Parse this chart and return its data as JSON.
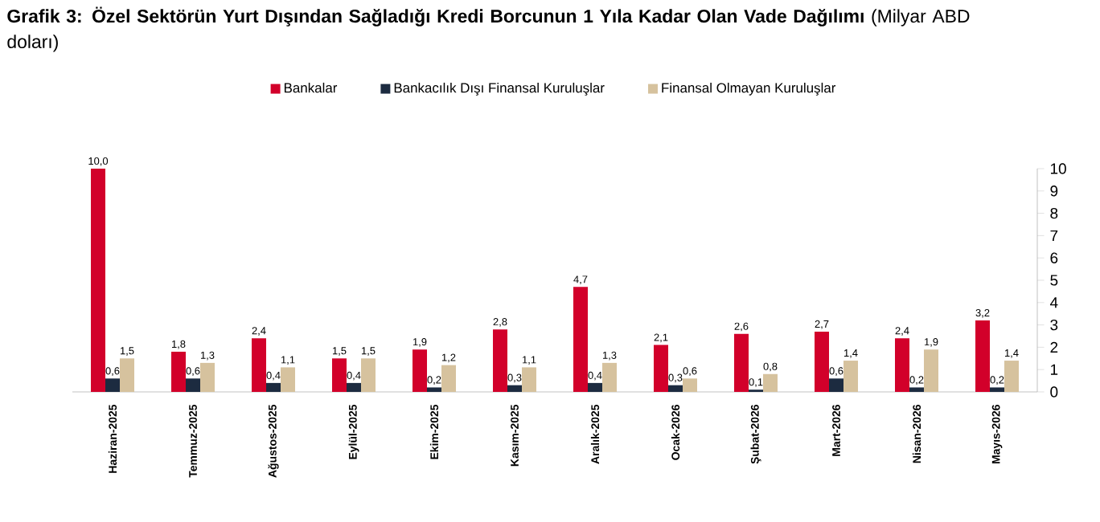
{
  "chart_data": {
    "type": "bar",
    "title": "**Grafik 3: Özel Sektörün Yurt Dışından Sağladığı Kredi Borcunun 1 Yıla Kadar Olan Vade Dağılımı** (Milyar ABD doları)",
    "categories": [
      "Haziran-2025",
      "Temmuz-2025",
      "Ağustos-2025",
      "Eylül-2025",
      "Ekim-2025",
      "Kasım-2025",
      "Aralık-2025",
      "Ocak-2026",
      "Şubat-2026",
      "Mart-2026",
      "Nisan-2026",
      "Mayıs-2026"
    ],
    "series": [
      {
        "name": "Bankalar",
        "color": "#d2002a",
        "values": [
          10.0,
          1.8,
          2.4,
          1.5,
          1.9,
          2.8,
          4.7,
          2.1,
          2.6,
          2.7,
          2.4,
          3.2
        ],
        "value_labels": [
          "10,0",
          "1,8",
          "2,4",
          "1,5",
          "1,9",
          "2,8",
          "4,7",
          "2,1",
          "2,6",
          "2,7",
          "2,4",
          "3,2"
        ]
      },
      {
        "name": "Bankacılık Dışı Finansal Kuruluşlar",
        "color": "#1c2b40",
        "values": [
          0.6,
          0.6,
          0.4,
          0.4,
          0.2,
          0.3,
          0.4,
          0.3,
          0.1,
          0.6,
          0.2,
          0.2
        ],
        "value_labels": [
          "0,6",
          "0,6",
          "0,4",
          "0,4",
          "0,2",
          "0,3",
          "0,4",
          "0,3",
          "0,1",
          "0,6",
          "0,2",
          "0,2"
        ]
      },
      {
        "name": "Finansal Olmayan Kuruluşlar",
        "color": "#d6c29e",
        "values": [
          1.5,
          1.3,
          1.1,
          1.5,
          1.2,
          1.1,
          1.3,
          0.6,
          0.8,
          1.4,
          1.9,
          1.4
        ],
        "value_labels": [
          "1,5",
          "1,3",
          "1,1",
          "1,5",
          "1,2",
          "1,1",
          "1,3",
          "0,6",
          "0,8",
          "1,4",
          "1,9",
          "1,4"
        ]
      }
    ],
    "ylim": [
      0,
      10
    ],
    "yticks": [
      0,
      1,
      2,
      3,
      4,
      5,
      6,
      7,
      8,
      9,
      10
    ],
    "legend": "top",
    "grid": false
  }
}
